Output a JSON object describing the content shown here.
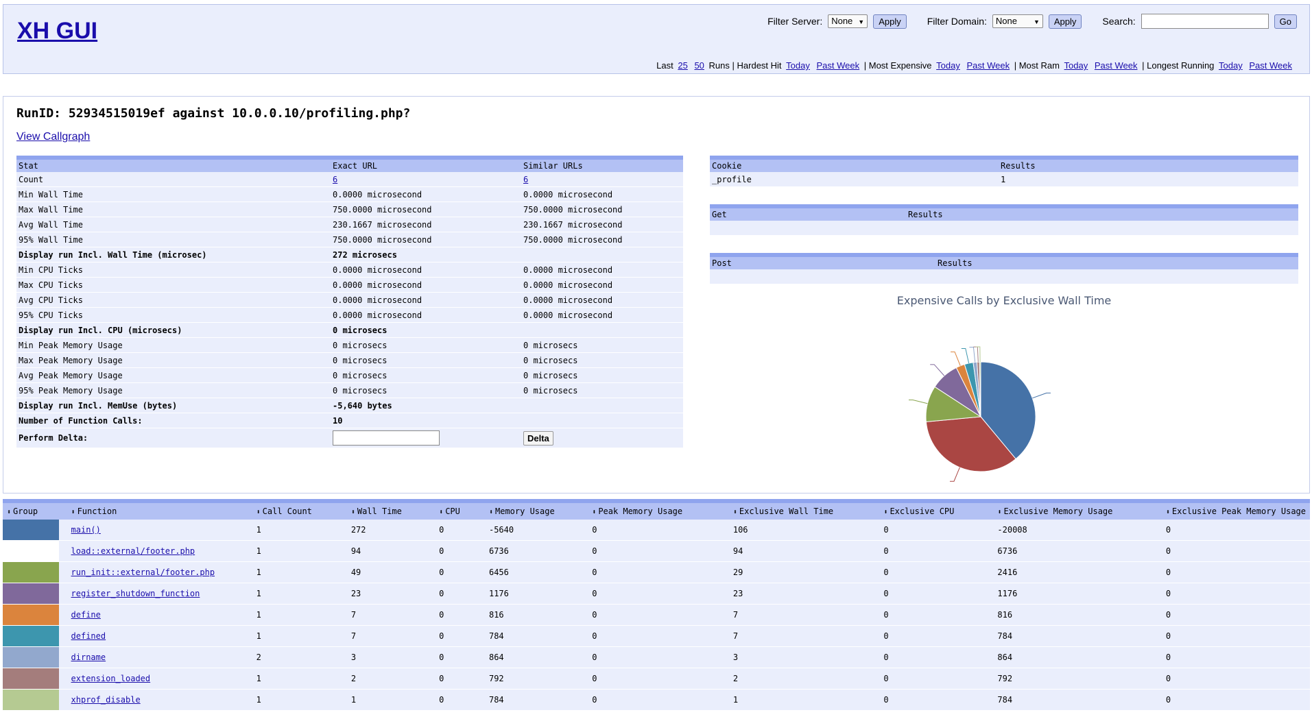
{
  "header": {
    "title": "XH GUI",
    "filter_server_label": "Filter Server:",
    "filter_server_value": "None",
    "filter_domain_label": "Filter Domain:",
    "filter_domain_value": "None",
    "apply_label": "Apply",
    "search_label": "Search:",
    "search_value": "",
    "go_label": "Go",
    "links": {
      "last": "Last",
      "n25": "25",
      "n50": "50",
      "runs": "Runs",
      "hardest_hit": "Hardest Hit",
      "most_expensive": "Most Expensive",
      "most_ram": "Most Ram",
      "longest_running": "Longest Running",
      "today": "Today",
      "past_week": "Past Week"
    }
  },
  "run": {
    "title": "RunID: 52934515019ef against 10.0.0.10/profiling.php?",
    "view_callgraph": "View Callgraph"
  },
  "stats": {
    "headers": [
      "Stat",
      "Exact URL",
      "Similar URLs"
    ],
    "rows": [
      {
        "label": "Count",
        "exact": "6",
        "similar": "6",
        "link": true
      },
      {
        "label": "Min Wall Time",
        "exact": "0.0000 microsecond",
        "similar": "0.0000 microsecond"
      },
      {
        "label": "Max Wall Time",
        "exact": "750.0000 microsecond",
        "similar": "750.0000 microsecond"
      },
      {
        "label": "Avg Wall Time",
        "exact": "230.1667 microsecond",
        "similar": "230.1667 microsecond"
      },
      {
        "label": "95% Wall Time",
        "exact": "750.0000 microsecond",
        "similar": "750.0000 microsecond"
      },
      {
        "label": "Display run Incl. Wall Time (microsec)",
        "exact": "272 microsecs",
        "similar": "",
        "bold": true
      },
      {
        "label": "Min CPU Ticks",
        "exact": "0.0000 microsecond",
        "similar": "0.0000 microsecond"
      },
      {
        "label": "Max CPU Ticks",
        "exact": "0.0000 microsecond",
        "similar": "0.0000 microsecond"
      },
      {
        "label": "Avg CPU Ticks",
        "exact": "0.0000 microsecond",
        "similar": "0.0000 microsecond"
      },
      {
        "label": "95% CPU Ticks",
        "exact": "0.0000 microsecond",
        "similar": "0.0000 microsecond"
      },
      {
        "label": "Display run Incl. CPU (microsecs)",
        "exact": "0 microsecs",
        "similar": "",
        "bold": true
      },
      {
        "label": "Min Peak Memory Usage",
        "exact": "0 microsecs",
        "similar": "0 microsecs"
      },
      {
        "label": "Max Peak Memory Usage",
        "exact": "0 microsecs",
        "similar": "0 microsecs"
      },
      {
        "label": "Avg Peak Memory Usage",
        "exact": "0 microsecs",
        "similar": "0 microsecs"
      },
      {
        "label": "95% Peak Memory Usage",
        "exact": "0 microsecs",
        "similar": "0 microsecs"
      },
      {
        "label": "Display run Incl. MemUse (bytes)",
        "exact": "-5,640 bytes",
        "similar": "",
        "bold": true
      },
      {
        "label": "Number of Function Calls:",
        "exact": "10",
        "similar": "",
        "bold": true
      }
    ],
    "delta_label": "Perform Delta:",
    "delta_value": "",
    "delta_button": "Delta"
  },
  "cookie": {
    "headers": [
      "Cookie",
      "Results"
    ],
    "rows": [
      [
        "_profile",
        "1"
      ]
    ]
  },
  "get": {
    "headers": [
      "Get",
      "Results"
    ]
  },
  "post": {
    "headers": [
      "Post",
      "Results"
    ]
  },
  "chart_data": {
    "type": "pie",
    "title": "Expensive Calls by Exclusive Wall Time",
    "categories": [
      "main()",
      "load::external/footer.php",
      "run_init::external/footer.php",
      "register_shutdown_function",
      "define",
      "defined",
      "dirname",
      "extension_loaded",
      "xhprof_disable"
    ],
    "values": [
      106,
      94,
      29,
      23,
      7,
      7,
      3,
      2,
      1
    ],
    "colors": [
      "#4572a7",
      "#aa4643",
      "#89a54e",
      "#80699b",
      "#db843d",
      "#3d96ae",
      "#92a8cd",
      "#a47d7c",
      "#b5ca92"
    ]
  },
  "functions": {
    "headers": [
      "Group",
      "Function",
      "Call Count",
      "Wall Time",
      "CPU",
      "Memory Usage",
      "Peak Memory Usage",
      "Exclusive Wall Time",
      "Exclusive CPU",
      "Exclusive Memory Usage",
      "Exclusive Peak Memory Usage"
    ],
    "rows": [
      {
        "color": "#4572a7",
        "name": "main()",
        "cells": [
          "1",
          "272",
          "0",
          "-5640",
          "0",
          "106",
          "0",
          "-20008",
          "0"
        ]
      },
      {
        "color": "#ffffff",
        "name": "load::external/footer.php",
        "cells": [
          "1",
          "94",
          "0",
          "6736",
          "0",
          "94",
          "0",
          "6736",
          "0"
        ]
      },
      {
        "color": "#89a54e",
        "name": "run_init::external/footer.php",
        "cells": [
          "1",
          "49",
          "0",
          "6456",
          "0",
          "29",
          "0",
          "2416",
          "0"
        ]
      },
      {
        "color": "#80699b",
        "name": "register_shutdown_function",
        "cells": [
          "1",
          "23",
          "0",
          "1176",
          "0",
          "23",
          "0",
          "1176",
          "0"
        ]
      },
      {
        "color": "#db843d",
        "name": "define",
        "cells": [
          "1",
          "7",
          "0",
          "816",
          "0",
          "7",
          "0",
          "816",
          "0"
        ]
      },
      {
        "color": "#3d96ae",
        "name": "defined",
        "cells": [
          "1",
          "7",
          "0",
          "784",
          "0",
          "7",
          "0",
          "784",
          "0"
        ]
      },
      {
        "color": "#92a8cd",
        "name": "dirname",
        "cells": [
          "2",
          "3",
          "0",
          "864",
          "0",
          "3",
          "0",
          "864",
          "0"
        ]
      },
      {
        "color": "#a47d7c",
        "name": "extension_loaded",
        "cells": [
          "1",
          "2",
          "0",
          "792",
          "0",
          "2",
          "0",
          "792",
          "0"
        ]
      },
      {
        "color": "#b5ca92",
        "name": "xhprof_disable",
        "cells": [
          "1",
          "1",
          "0",
          "784",
          "0",
          "1",
          "0",
          "784",
          "0"
        ]
      }
    ]
  }
}
